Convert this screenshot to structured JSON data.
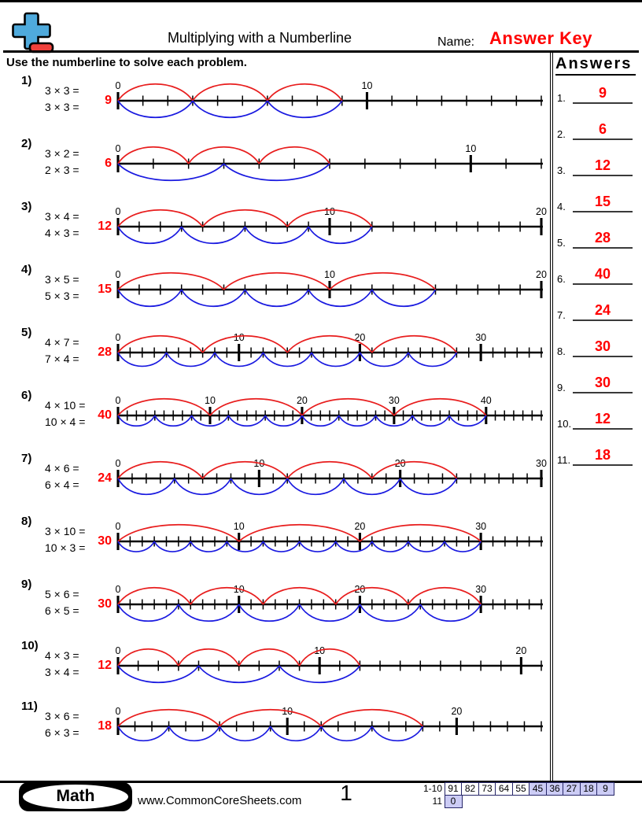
{
  "header": {
    "title": "Multiplying with a Numberline",
    "name_label": "Name:",
    "answer_key": "Answer Key"
  },
  "instruction": "Use the numberline to solve each problem.",
  "answers_panel": {
    "title": "Answers",
    "items": [
      {
        "num": "1.",
        "value": "9"
      },
      {
        "num": "2.",
        "value": "6"
      },
      {
        "num": "3.",
        "value": "12"
      },
      {
        "num": "4.",
        "value": "15"
      },
      {
        "num": "5.",
        "value": "28"
      },
      {
        "num": "6.",
        "value": "40"
      },
      {
        "num": "7.",
        "value": "24"
      },
      {
        "num": "8.",
        "value": "30"
      },
      {
        "num": "9.",
        "value": "30"
      },
      {
        "num": "10.",
        "value": "12"
      },
      {
        "num": "11.",
        "value": "18"
      }
    ]
  },
  "problems": [
    {
      "num": "1)",
      "eq1": "3 × 3 =",
      "eq2": "3 × 3 =",
      "answer": "9",
      "factor_a": 3,
      "factor_b": 3,
      "max_units": 17,
      "label_step": 10
    },
    {
      "num": "2)",
      "eq1": "3 × 2 =",
      "eq2": "2 × 3 =",
      "answer": "6",
      "factor_a": 3,
      "factor_b": 2,
      "max_units": 12,
      "label_step": 10
    },
    {
      "num": "3)",
      "eq1": "3 × 4 =",
      "eq2": "4 × 3 =",
      "answer": "12",
      "factor_a": 3,
      "factor_b": 4,
      "max_units": 20,
      "label_step": 10
    },
    {
      "num": "4)",
      "eq1": "3 × 5 =",
      "eq2": "5 × 3 =",
      "answer": "15",
      "factor_a": 3,
      "factor_b": 5,
      "max_units": 20,
      "label_step": 10
    },
    {
      "num": "5)",
      "eq1": "4 × 7 =",
      "eq2": "7 × 4 =",
      "answer": "28",
      "factor_a": 4,
      "factor_b": 7,
      "max_units": 35,
      "label_step": 10
    },
    {
      "num": "6)",
      "eq1": "4 × 10 =",
      "eq2": "10 × 4 =",
      "answer": "40",
      "factor_a": 4,
      "factor_b": 10,
      "max_units": 46,
      "label_step": 10
    },
    {
      "num": "7)",
      "eq1": "4 × 6 =",
      "eq2": "6 × 4 =",
      "answer": "24",
      "factor_a": 4,
      "factor_b": 6,
      "max_units": 30,
      "label_step": 10
    },
    {
      "num": "8)",
      "eq1": "3 × 10 =",
      "eq2": "10 × 3 =",
      "answer": "30",
      "factor_a": 3,
      "factor_b": 10,
      "max_units": 35,
      "label_step": 10
    },
    {
      "num": "9)",
      "eq1": "5 × 6 =",
      "eq2": "6 × 5 =",
      "answer": "30",
      "factor_a": 5,
      "factor_b": 6,
      "max_units": 35,
      "label_step": 10
    },
    {
      "num": "10)",
      "eq1": "4 × 3 =",
      "eq2": "3 × 4 =",
      "answer": "12",
      "factor_a": 4,
      "factor_b": 3,
      "max_units": 21,
      "label_step": 10
    },
    {
      "num": "11)",
      "eq1": "3 × 6 =",
      "eq2": "6 × 3 =",
      "answer": "18",
      "factor_a": 3,
      "factor_b": 6,
      "max_units": 25,
      "label_step": 10
    }
  ],
  "footer": {
    "badge": "Math",
    "website": "www.CommonCoreSheets.com",
    "page_number": "1",
    "score_rows": [
      {
        "label": "1-10",
        "cells": [
          {
            "value": "91",
            "highlight": false
          },
          {
            "value": "82",
            "highlight": false
          },
          {
            "value": "73",
            "highlight": false
          },
          {
            "value": "64",
            "highlight": false
          },
          {
            "value": "55",
            "highlight": false
          },
          {
            "value": "45",
            "highlight": true
          },
          {
            "value": "36",
            "highlight": true
          },
          {
            "value": "27",
            "highlight": true
          },
          {
            "value": "18",
            "highlight": true
          },
          {
            "value": "9",
            "highlight": true
          }
        ]
      },
      {
        "label": "11",
        "cells": [
          {
            "value": "0",
            "highlight": true
          }
        ]
      }
    ]
  },
  "colors": {
    "accent_red": "#ff0000",
    "arc_red": "#e81d1d",
    "arc_blue": "#1a1ae0",
    "logo_blue": "#4FAADC",
    "logo_red": "#F0413C",
    "score_cell_highlight": "#ccccf5",
    "score_cell_border": "#262668"
  }
}
